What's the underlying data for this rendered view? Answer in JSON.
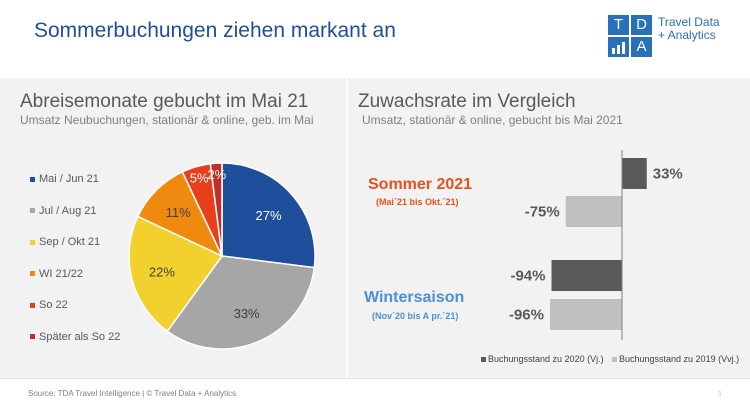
{
  "header": {
    "title": "Sommerbuchungen ziehen markant an",
    "logo_letters": [
      "T",
      "D",
      "",
      "A"
    ],
    "logo_line1": "Travel Data",
    "logo_line2": "+ Analytics"
  },
  "left": {
    "title": "Abreisemonate gebucht im Mai 21",
    "subtitle": "Umsatz Neubuchungen, stationär & online, geb. im Mai"
  },
  "right": {
    "title": "Zuwachsrate im Vergleich",
    "subtitle": "Umsatz, stationär & online, gebucht bis Mai 2021"
  },
  "footer": {
    "source": "Source: TDA Travel Intelligence   |   © Travel Data + Analytics",
    "page": "1"
  },
  "colors": {
    "accent": "#1f4e9c",
    "logo": "#2a6fba",
    "summer": "#e8501e",
    "winter": "#4a90d9"
  },
  "chart_data": [
    {
      "type": "pie",
      "title": "Abreisemonate gebucht im Mai 21",
      "categories": [
        "Mai / Jun 21",
        "Jul / Aug 21",
        "Sep / Okt 21",
        "WI 21/22",
        "So 22",
        "Später als So 22"
      ],
      "values": [
        27,
        33,
        22,
        11,
        5,
        2
      ],
      "labels": [
        "27%",
        "33%",
        "22%",
        "11%",
        "5%",
        "2%"
      ],
      "colors": [
        "#1f4e9c",
        "#a6a6a6",
        "#f2d12e",
        "#f08a0f",
        "#e83e1c",
        "#c0302a"
      ],
      "legend": "left"
    },
    {
      "type": "bar",
      "orientation": "horizontal",
      "title": "Zuwachsrate im Vergleich",
      "categories": [
        "Sommer 2021",
        "Wintersaison"
      ],
      "category_subtitles": [
        "(Mai´21 bis Okt.´21)",
        "(Nov´20 bis A pr.´21)"
      ],
      "series": [
        {
          "name": "Buchungsstand zu 2020 (Vj.)",
          "values": [
            33,
            -94
          ],
          "labels": [
            "33%",
            "-94%"
          ],
          "color": "#595959"
        },
        {
          "name": "Buchungsstand zu 2019 (Vvj.)",
          "values": [
            -75,
            -96
          ],
          "labels": [
            "-75%",
            "-96%"
          ],
          "color": "#c0c0c0"
        }
      ],
      "xlim": [
        -100,
        35
      ],
      "legend": "bottom"
    }
  ]
}
